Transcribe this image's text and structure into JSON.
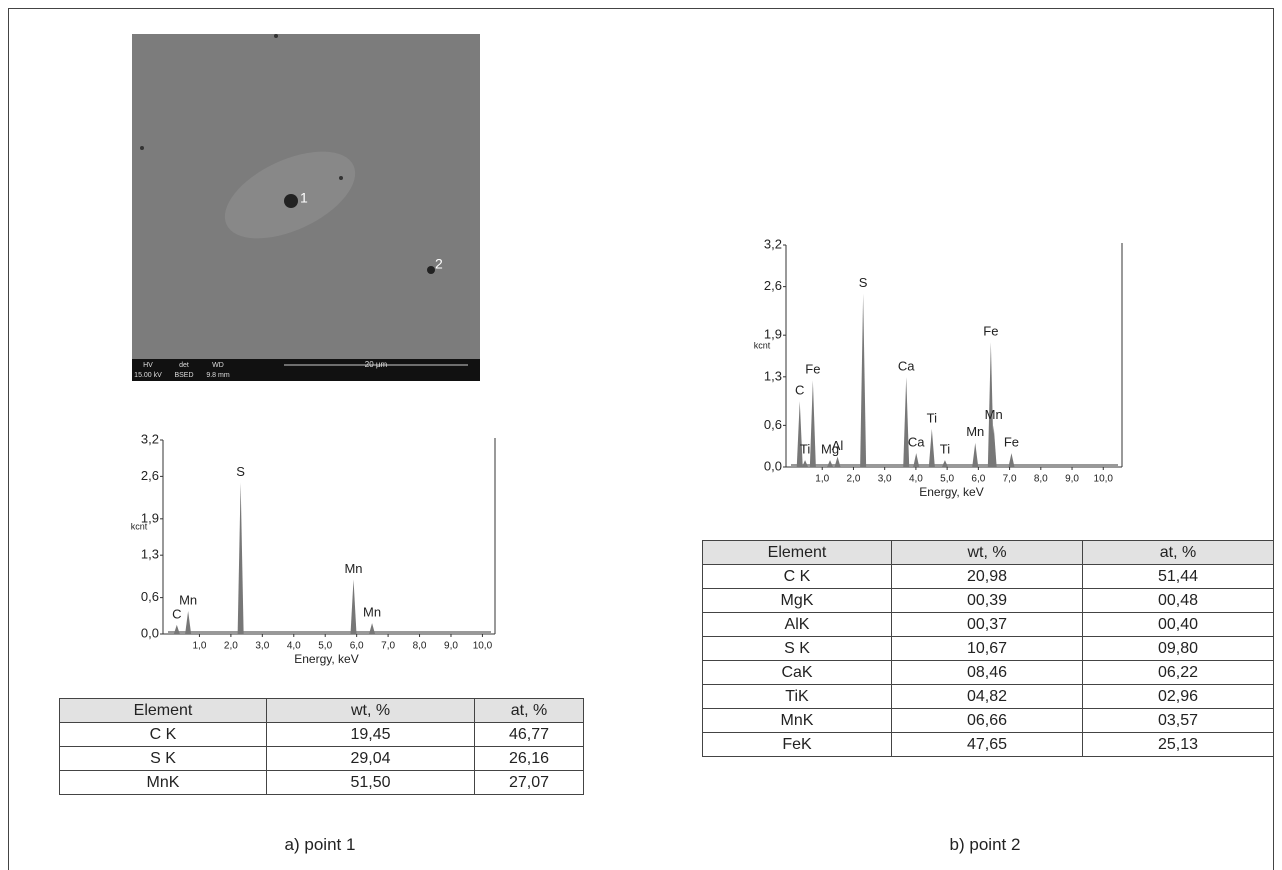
{
  "panels": [
    {
      "caption": "a) point 1",
      "sem": {
        "labels": [
          "HV",
          "det",
          "WD"
        ],
        "values": [
          "15.00 kV",
          "BSED",
          "9.8 mm"
        ],
        "scale": "20 µm",
        "points": [
          "1",
          "2"
        ]
      },
      "spectrum": {
        "type": "spectrum",
        "ylabel": "kcnt",
        "xlabel": "Energy, keV",
        "xlim": [
          0,
          10.4
        ],
        "ylim": [
          0,
          3.2
        ],
        "xticks": [
          {
            "value": 1,
            "label": "1,0"
          },
          {
            "value": 2,
            "label": "2,0"
          },
          {
            "value": 3,
            "label": "3,0"
          },
          {
            "value": 4,
            "label": "4,0"
          },
          {
            "value": 5,
            "label": "5,0"
          },
          {
            "value": 6,
            "label": "6,0"
          },
          {
            "value": 7,
            "label": "7,0"
          },
          {
            "value": 8,
            "label": "8,0"
          },
          {
            "value": 9,
            "label": "9,0"
          },
          {
            "value": 10,
            "label": "10,0"
          }
        ],
        "yticks": [
          {
            "value": 0,
            "label": "0,0"
          },
          {
            "value": 0.6,
            "label": "0,6"
          },
          {
            "value": 1.3,
            "label": "1,3"
          },
          {
            "value": 1.9,
            "label": "1,9"
          },
          {
            "value": 2.6,
            "label": "2,6"
          },
          {
            "value": 3.2,
            "label": "3,2"
          }
        ],
        "peaks": [
          {
            "label": "C",
            "energy": 0.28,
            "height": 0.15
          },
          {
            "label": "Mn",
            "energy": 0.64,
            "height": 0.38
          },
          {
            "label": "S",
            "energy": 2.31,
            "height": 2.5
          },
          {
            "label": "Mn",
            "energy": 5.9,
            "height": 0.9
          },
          {
            "label": "Mn",
            "energy": 6.49,
            "height": 0.18
          }
        ]
      },
      "table": {
        "header": [
          "Element",
          "wt, %",
          "at, %"
        ],
        "rows": [
          [
            "C K",
            "19,45",
            "46,77"
          ],
          [
            "S K",
            "29,04",
            "26,16"
          ],
          [
            "MnK",
            "51,50",
            "27,07"
          ]
        ]
      }
    },
    {
      "caption": "b) point 2",
      "spectrum": {
        "type": "spectrum",
        "ylabel": "kcnt",
        "xlabel": "Energy, keV",
        "xlim": [
          0,
          10.6
        ],
        "ylim": [
          0,
          3.2
        ],
        "xticks": [
          {
            "value": 1,
            "label": "1,0"
          },
          {
            "value": 2,
            "label": "2,0"
          },
          {
            "value": 3,
            "label": "3,0"
          },
          {
            "value": 4,
            "label": "4,0"
          },
          {
            "value": 5,
            "label": "5,0"
          },
          {
            "value": 6,
            "label": "6,0"
          },
          {
            "value": 7,
            "label": "7,0"
          },
          {
            "value": 8,
            "label": "8,0"
          },
          {
            "value": 9,
            "label": "9,0"
          },
          {
            "value": 10,
            "label": "10,0"
          }
        ],
        "yticks": [
          {
            "value": 0,
            "label": "0,0"
          },
          {
            "value": 0.6,
            "label": "0,6"
          },
          {
            "value": 1.3,
            "label": "1,3"
          },
          {
            "value": 1.9,
            "label": "1,9"
          },
          {
            "value": 2.6,
            "label": "2,6"
          },
          {
            "value": 3.2,
            "label": "3,2"
          }
        ],
        "peaks": [
          {
            "label": "C",
            "energy": 0.28,
            "height": 0.95
          },
          {
            "label": "Ti",
            "energy": 0.45,
            "height": 0.1
          },
          {
            "label": "Fe",
            "energy": 0.7,
            "height": 1.25
          },
          {
            "label": "Mg",
            "energy": 1.25,
            "height": 0.1
          },
          {
            "label": "Al",
            "energy": 1.49,
            "height": 0.15
          },
          {
            "label": "S",
            "energy": 2.31,
            "height": 2.5
          },
          {
            "label": "Ca",
            "energy": 3.69,
            "height": 1.3
          },
          {
            "label": "Ca",
            "energy": 4.01,
            "height": 0.2
          },
          {
            "label": "Ti",
            "energy": 4.51,
            "height": 0.55
          },
          {
            "label": "Ti",
            "energy": 4.93,
            "height": 0.1
          },
          {
            "label": "Mn",
            "energy": 5.9,
            "height": 0.35
          },
          {
            "label": "Fe",
            "energy": 6.4,
            "height": 1.8
          },
          {
            "label": "Mn",
            "energy": 6.49,
            "height": 0.6
          },
          {
            "label": "Fe",
            "energy": 7.06,
            "height": 0.2
          }
        ]
      },
      "table": {
        "header": [
          "Element",
          "wt, %",
          "at, %"
        ],
        "rows": [
          [
            "C K",
            "20,98",
            "51,44"
          ],
          [
            "MgK",
            "00,39",
            "00,48"
          ],
          [
            "AlK",
            "00,37",
            "00,40"
          ],
          [
            "S K",
            "10,67",
            "09,80"
          ],
          [
            "CaK",
            "08,46",
            "06,22"
          ],
          [
            "TiK",
            "04,82",
            "02,96"
          ],
          [
            "MnK",
            "06,66",
            "03,57"
          ],
          [
            "FeK",
            "47,65",
            "25,13"
          ]
        ]
      }
    }
  ]
}
